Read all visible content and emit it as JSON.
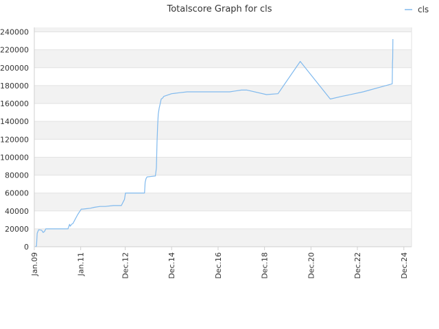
{
  "chart_data": {
    "type": "line",
    "title": "Totalscore Graph for cls",
    "xlabel": "",
    "ylabel": "",
    "legend": {
      "placement": "top-right",
      "entries": [
        "cls"
      ]
    },
    "grid": true,
    "band_colors": [
      "#f2f2f2",
      "#ffffff"
    ],
    "line_color": "#7fb9ee",
    "xlim": [
      "2009-01-01",
      "2025-04-01"
    ],
    "ylim": [
      0,
      245000
    ],
    "yticks": [
      0,
      20000,
      40000,
      60000,
      80000,
      100000,
      120000,
      140000,
      160000,
      180000,
      200000,
      220000,
      240000
    ],
    "ytick_labels": [
      "0",
      "20000",
      "40000",
      "60000",
      "80000",
      "100000",
      "120000",
      "140000",
      "160000",
      "180000",
      "200000",
      "220000",
      "240000"
    ],
    "xticks": [
      "2009-01-01",
      "2011-01-01",
      "2012-12-01",
      "2014-12-01",
      "2016-12-01",
      "2018-12-01",
      "2020-12-01",
      "2022-12-01",
      "2024-12-01"
    ],
    "xtick_labels": [
      "Jan.09",
      "Jan.11",
      "Dec.12",
      "Dec.14",
      "Dec.16",
      "Dec.18",
      "Dec.20",
      "Dec.22",
      "Dec.24"
    ],
    "series": [
      {
        "name": "cls",
        "x": [
          "2009-01-20",
          "2009-02-05",
          "2009-02-15",
          "2009-03-10",
          "2009-04-25",
          "2009-05-20",
          "2009-06-10",
          "2009-07-01",
          "2009-09-01",
          "2010-01-01",
          "2010-06-15",
          "2010-07-10",
          "2010-07-20",
          "2010-08-10",
          "2010-09-01",
          "2010-10-01",
          "2010-11-15",
          "2011-01-10",
          "2011-02-01",
          "2011-06-01",
          "2011-08-01",
          "2011-11-01",
          "2012-01-01",
          "2012-01-20",
          "2012-06-01",
          "2012-10-01",
          "2012-11-20",
          "2012-12-05",
          "2012-12-20",
          "2013-06-01",
          "2013-10-01",
          "2013-10-10",
          "2013-10-25",
          "2013-11-10",
          "2014-03-20",
          "2014-04-05",
          "2014-04-15",
          "2014-04-25",
          "2014-05-05",
          "2014-05-20",
          "2014-06-05",
          "2014-06-20",
          "2014-07-10",
          "2014-08-01",
          "2014-12-01",
          "2015-04-01",
          "2015-08-01",
          "2016-06-01",
          "2017-06-01",
          "2017-09-01",
          "2017-12-01",
          "2018-03-01",
          "2019-01-01",
          "2019-07-01",
          "2020-06-15",
          "2021-10-01",
          "2022-04-01",
          "2023-03-01",
          "2024-06-01",
          "2024-06-05",
          "2024-06-08",
          "2024-06-10",
          "2024-06-12"
        ],
        "values": [
          0,
          1000,
          15000,
          19000,
          18500,
          16000,
          17000,
          20000,
          20000,
          20000,
          20000,
          25000,
          23000,
          25000,
          26000,
          30000,
          36000,
          42000,
          42000,
          43000,
          44000,
          45000,
          45000,
          45000,
          46000,
          46000,
          53000,
          60000,
          60000,
          60000,
          60000,
          72000,
          76000,
          78000,
          79000,
          88000,
          116000,
          135000,
          148000,
          155000,
          160000,
          165000,
          166000,
          168000,
          171000,
          172000,
          173000,
          173000,
          173000,
          174000,
          175000,
          175000,
          170000,
          171000,
          207000,
          165000,
          168000,
          173000,
          182000,
          205000,
          210000,
          225000,
          232000
        ]
      }
    ]
  }
}
